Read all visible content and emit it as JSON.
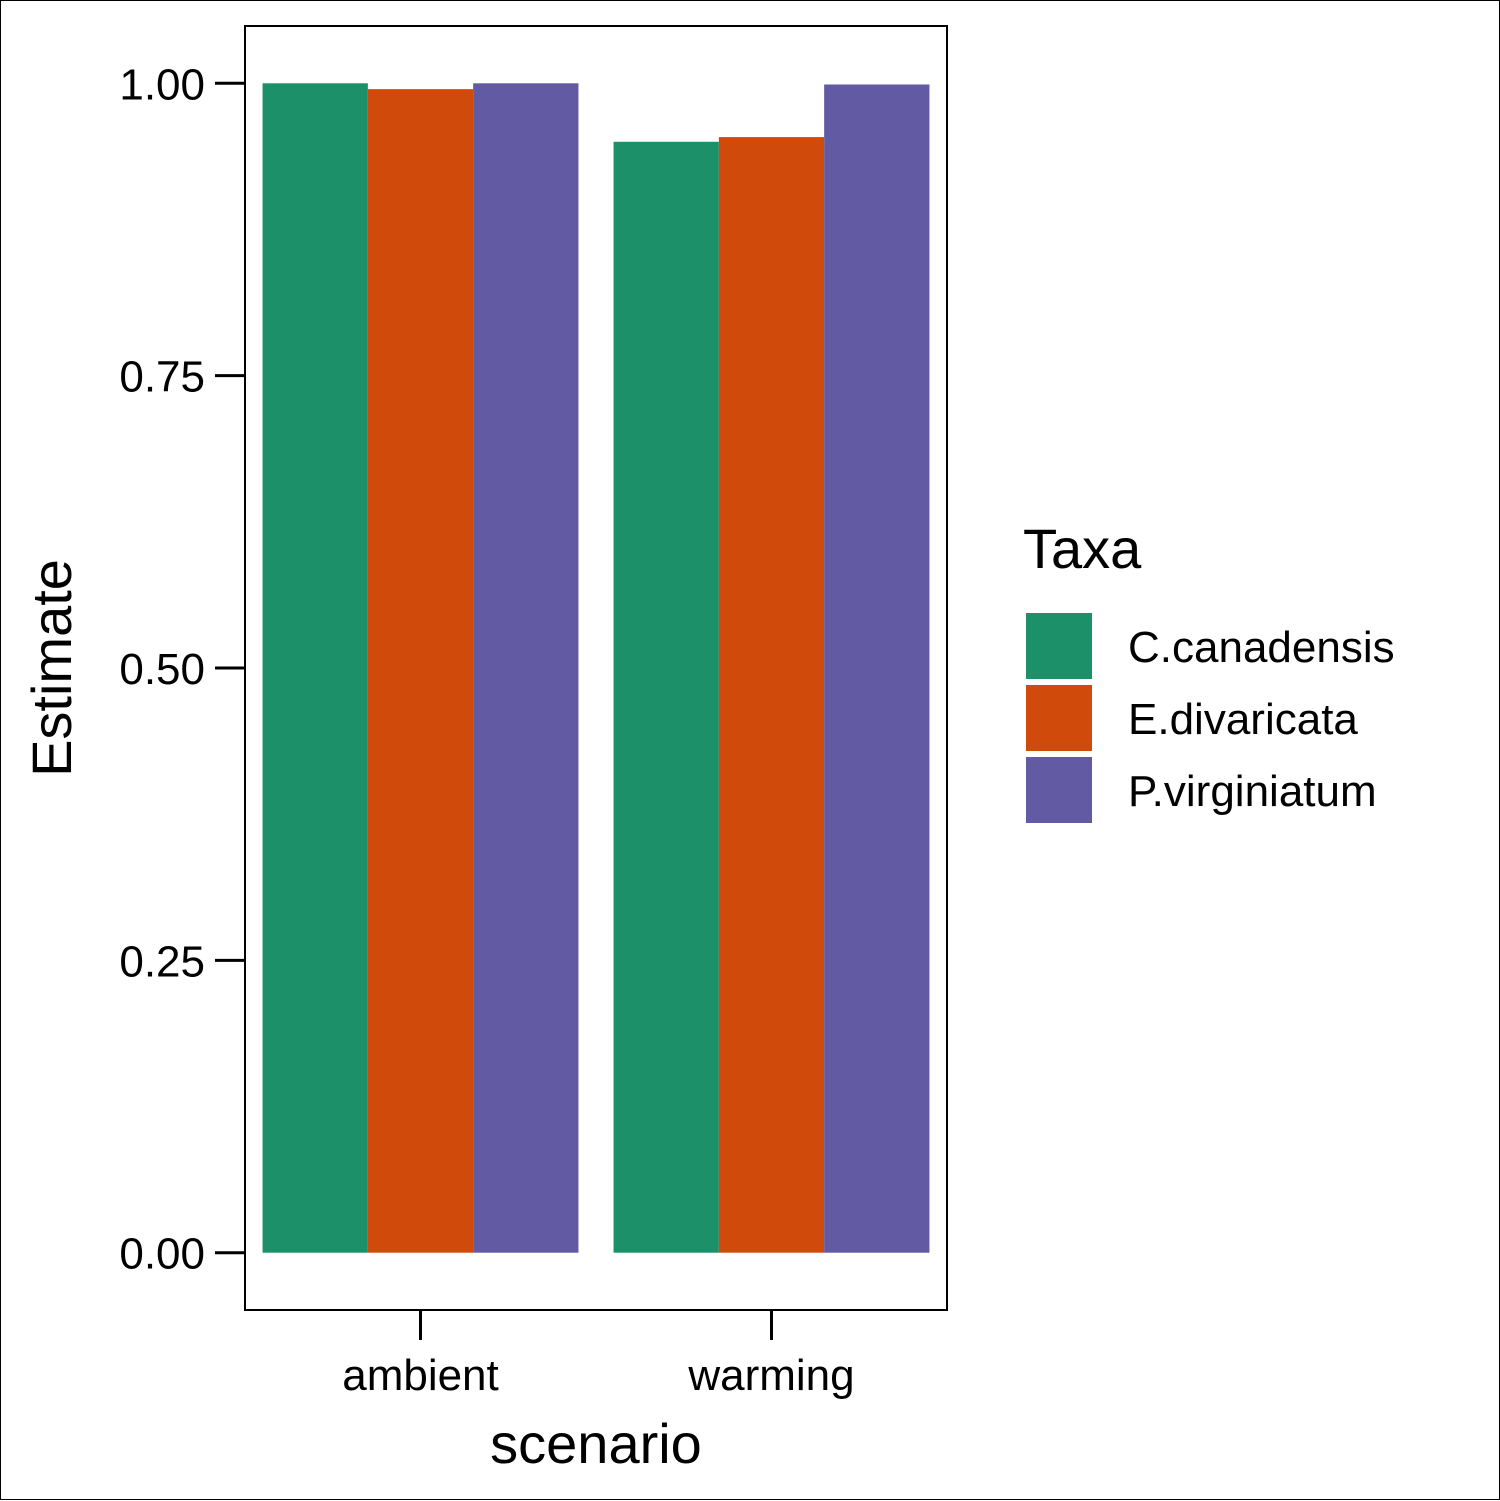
{
  "chart_data": {
    "type": "bar",
    "categories": [
      "ambient",
      "warming"
    ],
    "series": [
      {
        "name": "C.canadensis",
        "color": "#1b9069",
        "values": [
          1.0,
          0.95
        ]
      },
      {
        "name": "E.divaricata",
        "color": "#d04a0c",
        "values": [
          0.995,
          0.954
        ]
      },
      {
        "name": "P.virginiatum",
        "color": "#625aa3",
        "values": [
          1.0,
          0.999
        ]
      }
    ],
    "xlabel": "scenario",
    "ylabel": "Estimate",
    "ylim": [
      -0.049,
      1.049
    ],
    "yticks": [
      0.0,
      0.25,
      0.5,
      0.75,
      1.0
    ],
    "ytick_labels": [
      "0.00",
      "0.25",
      "0.50",
      "0.75",
      "1.00"
    ],
    "grid": false,
    "legend": {
      "title": "Taxa",
      "position": "right"
    }
  }
}
